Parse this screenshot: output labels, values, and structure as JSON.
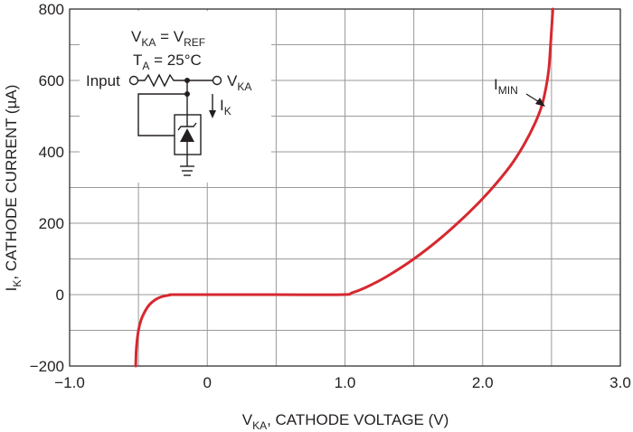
{
  "chart_data": {
    "type": "line",
    "title": "",
    "xlabel_main": "V",
    "xlabel_sub": "KA",
    "xlabel_rest": ", CATHODE VOLTAGE (V)",
    "ylabel_main": "I",
    "ylabel_sub": "K",
    "ylabel_rest": ", CATHODE CURRENT (µA)",
    "xlim": [
      -1.0,
      3.0
    ],
    "ylim": [
      -200,
      800
    ],
    "x_ticks": [
      -1.0,
      -0.5,
      0,
      0.5,
      1.0,
      1.5,
      2.0,
      2.5,
      3.0
    ],
    "x_tick_labels": [
      "−1.0",
      "",
      "0",
      "",
      "1.0",
      "",
      "2.0",
      "",
      "3.0"
    ],
    "y_ticks": [
      -200,
      -100,
      0,
      100,
      200,
      300,
      400,
      500,
      600,
      700,
      800
    ],
    "y_tick_labels": [
      "−200",
      "",
      "0",
      "",
      "200",
      "",
      "400",
      "",
      "600",
      "",
      "800"
    ],
    "grid": true,
    "series": [
      {
        "color": "#d7282f",
        "x": [
          -0.52,
          -0.515,
          -0.5,
          -0.48,
          -0.45,
          -0.42,
          -0.38,
          -0.34,
          -0.3,
          -0.27,
          -0.25,
          0,
          0.5,
          0.98,
          1.05,
          1.15,
          1.3,
          1.5,
          1.7,
          1.9,
          2.05,
          2.2,
          2.3,
          2.38,
          2.43,
          2.46,
          2.48,
          2.49,
          2.5,
          2.51
        ],
        "y": [
          -200,
          -150,
          -100,
          -70,
          -45,
          -28,
          -15,
          -7,
          -3,
          -1,
          0,
          0,
          0,
          0,
          5,
          20,
          50,
          100,
          160,
          230,
          290,
          360,
          420,
          480,
          530,
          580,
          630,
          680,
          740,
          800
        ]
      }
    ],
    "annotations": [
      {
        "text_main": "I",
        "text_sub": "MIN",
        "x": 2.45,
        "y": 535
      }
    ]
  },
  "schematic": {
    "line1_main": "V",
    "line1_sub": "KA",
    "line1_mid": " = V",
    "line1_sub2": "REF",
    "line2_main": "T",
    "line2_sub": "A",
    "line2_rest": " = 25°C",
    "input_label": "Input",
    "output_main": "V",
    "output_sub": "KA",
    "current_main": "I",
    "current_sub": "K"
  }
}
